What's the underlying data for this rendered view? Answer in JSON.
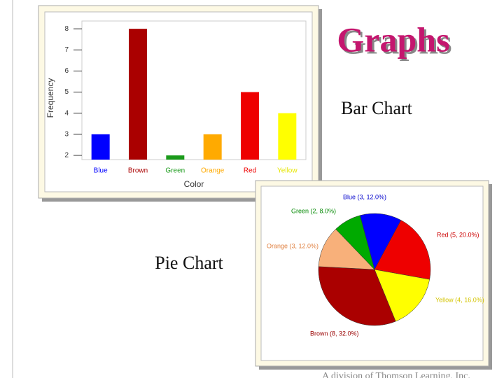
{
  "slide": {
    "title": "Graphs",
    "bar_caption": "Bar Chart",
    "pie_caption": "Pie Chart",
    "footer": "A division of Thomson Learning, Inc."
  },
  "chart_data": [
    {
      "type": "bar",
      "x_label": "Color",
      "y_label": "Frequency",
      "categories": [
        "Blue",
        "Brown",
        "Green",
        "Orange",
        "Red",
        "Yellow"
      ],
      "values": [
        3,
        8,
        2,
        3,
        5,
        4
      ],
      "colors": [
        "#0000ff",
        "#aa0000",
        "#1a9a1a",
        "#ffaa00",
        "#ee0000",
        "#ffff00"
      ],
      "ylim": [
        1.8,
        8.37
      ],
      "yticks": [
        2,
        3,
        4,
        5,
        6,
        7,
        8
      ],
      "grid": false
    },
    {
      "type": "pie",
      "categories": [
        "Blue",
        "Red",
        "Yellow",
        "Brown",
        "Orange",
        "Green"
      ],
      "values": [
        3,
        5,
        4,
        8,
        3,
        2
      ],
      "value_labels": [
        "Blue (3, 12.0%)",
        "Red (5, 20.0%)",
        "Yellow (4, 16.0%)",
        "Brown (8, 32.0%)",
        "Orange (3, 12.0%)",
        "Green (2, 8.0%)"
      ],
      "colors": [
        "#0000ff",
        "#ee0000",
        "#ffff00",
        "#aa0000",
        "#f8b07a",
        "#00aa00"
      ],
      "label_colors": [
        "#0000cc",
        "#cc0000",
        "#d4c400",
        "#990000",
        "#e08040",
        "#008800"
      ]
    }
  ]
}
